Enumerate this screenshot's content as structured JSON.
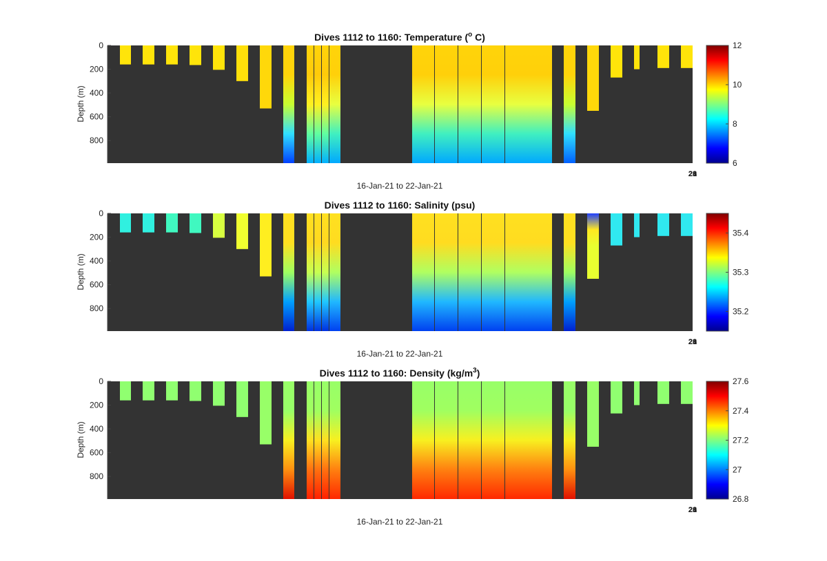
{
  "chart_data": [
    {
      "type": "heatmap",
      "title_main": "Dives 1112 to 1160: Temperature (",
      "title_sup": "o",
      "title_tail": " C)",
      "xlabel": "16-Jan-21 to 22-Jan-21",
      "ylabel": "Depth (m)",
      "y_ticks": [
        "0",
        "200",
        "400",
        "600",
        "800"
      ],
      "x_tick_labels": [
        "20",
        "21",
        "28"
      ],
      "colorbar_ticks": [
        "12",
        "10",
        "8",
        "6"
      ],
      "clim": [
        6,
        12
      ],
      "ylim": [
        0,
        990
      ],
      "background_color": "#333333",
      "profiles": [
        {
          "max_depth": 160,
          "color": "#ffe40a"
        },
        {
          "max_depth": 160,
          "color": "#ffe40a"
        },
        {
          "max_depth": 160,
          "color": "#ffe40a"
        },
        {
          "max_depth": 165,
          "color": "#ffe40a"
        },
        {
          "max_depth": 205,
          "color": "#ffe40a"
        },
        {
          "max_depth": 300,
          "color": "#ffe00a"
        },
        {
          "max_depth": 530,
          "color": "#ffd80a"
        },
        {
          "max_depth": 990,
          "gradient": [
            "#ffd40a",
            "#ffd40a",
            "#c8ff30",
            "#30e0ff",
            "#0040ff"
          ]
        },
        {
          "max_depth": 990,
          "gradient": [
            "#ffd40a",
            "#ffca0a",
            "#fff020",
            "#60ffa0",
            "#00b0ff"
          ]
        },
        {
          "max_depth": 990,
          "gradient": [
            "#ffd40a",
            "#ffca0a",
            "#fff020",
            "#60ffa0",
            "#00b0ff"
          ]
        },
        {
          "max_depth": 990,
          "gradient": [
            "#ffd40a",
            "#ffca0a",
            "#fff020",
            "#60ffa0",
            "#00b0ff"
          ]
        },
        {
          "max_depth": 990,
          "gradient": [
            "#ffd40a",
            "#ffd00a",
            "#e8ff40",
            "#40f0c0",
            "#00a8ff"
          ]
        },
        {
          "max_depth": 990,
          "gradient": [
            "#ffd40a",
            "#ffd00a",
            "#e8ff40",
            "#40f0c0",
            "#00a8ff"
          ]
        },
        {
          "max_depth": 990,
          "gradient": [
            "#ffd40a",
            "#ffd00a",
            "#e8ff40",
            "#40f0c0",
            "#00a8ff"
          ]
        },
        {
          "max_depth": 990,
          "gradient": [
            "#ffd40a",
            "#ffd00a",
            "#e8ff40",
            "#40f0c0",
            "#00a8ff"
          ]
        },
        {
          "max_depth": 990,
          "gradient": [
            "#ffd40a",
            "#ffd00a",
            "#e8ff40",
            "#40f0c0",
            "#00a8ff"
          ]
        },
        {
          "max_depth": 990,
          "gradient": [
            "#ffd40a",
            "#ffd00a",
            "#e8ff40",
            "#40f0c0",
            "#00a8ff"
          ]
        },
        {
          "max_depth": 990,
          "gradient": [
            "#ffd40a",
            "#ffd00a",
            "#e8ff40",
            "#40f0c0",
            "#00a8ff"
          ]
        },
        {
          "max_depth": 990,
          "gradient": [
            "#ffd40a",
            "#ffd40a",
            "#c8ff30",
            "#30e0ff",
            "#0060ff"
          ]
        },
        {
          "max_depth": 550,
          "color": "#ffd80a"
        },
        {
          "max_depth": 270,
          "color": "#ffe40a"
        },
        {
          "max_depth": 200,
          "color": "#ffe40a"
        },
        {
          "max_depth": 190,
          "color": "#ffe40a"
        },
        {
          "max_depth": 190,
          "color": "#ffe40a"
        }
      ]
    },
    {
      "type": "heatmap",
      "title_main": "Dives 1112 to 1160: Salinity (psu)",
      "title_sup": "",
      "title_tail": "",
      "xlabel": "16-Jan-21 to 22-Jan-21",
      "ylabel": "Depth (m)",
      "y_ticks": [
        "0",
        "200",
        "400",
        "600",
        "800"
      ],
      "x_tick_labels": [
        "20",
        "21",
        "28"
      ],
      "colorbar_ticks": [
        "35.4",
        "35.3",
        "35.2"
      ],
      "clim": [
        35.15,
        35.45
      ],
      "ylim": [
        0,
        990
      ],
      "background_color": "#333333",
      "profiles": [
        {
          "max_depth": 160,
          "color": "#30f0e0"
        },
        {
          "max_depth": 160,
          "color": "#30f0e0"
        },
        {
          "max_depth": 160,
          "color": "#40f8c0"
        },
        {
          "max_depth": 165,
          "color": "#40f8c0"
        },
        {
          "max_depth": 205,
          "color": "#d8ff40"
        },
        {
          "max_depth": 300,
          "color": "#f0ff30"
        },
        {
          "max_depth": 530,
          "color": "#ffee20"
        },
        {
          "max_depth": 990,
          "gradient": [
            "#ffe020",
            "#ffe020",
            "#a0ff60",
            "#00a0ff",
            "#0020d0"
          ]
        },
        {
          "max_depth": 990,
          "gradient": [
            "#ffe020",
            "#ffd820",
            "#c8ff50",
            "#20c8ff",
            "#0030e0"
          ]
        },
        {
          "max_depth": 990,
          "gradient": [
            "#ffe020",
            "#ffd820",
            "#c8ff50",
            "#20c8ff",
            "#0030e0"
          ]
        },
        {
          "max_depth": 990,
          "gradient": [
            "#ffe020",
            "#ffd820",
            "#c8ff50",
            "#20c8ff",
            "#0030e0"
          ]
        },
        {
          "max_depth": 990,
          "gradient": [
            "#ffe020",
            "#ffdc20",
            "#b0ff60",
            "#20b8ff",
            "#0040f0"
          ]
        },
        {
          "max_depth": 990,
          "gradient": [
            "#ffe020",
            "#ffdc20",
            "#b0ff60",
            "#20b8ff",
            "#0040f0"
          ]
        },
        {
          "max_depth": 990,
          "gradient": [
            "#ffe020",
            "#ffdc20",
            "#b0ff60",
            "#20b8ff",
            "#0040f0"
          ]
        },
        {
          "max_depth": 990,
          "gradient": [
            "#ffe020",
            "#ffdc20",
            "#b0ff60",
            "#20b8ff",
            "#0040f0"
          ]
        },
        {
          "max_depth": 990,
          "gradient": [
            "#ffe020",
            "#ffdc20",
            "#b0ff60",
            "#20b8ff",
            "#0040f0"
          ]
        },
        {
          "max_depth": 990,
          "gradient": [
            "#ffe020",
            "#ffdc20",
            "#b0ff60",
            "#20b8ff",
            "#0040f0"
          ]
        },
        {
          "max_depth": 990,
          "gradient": [
            "#ffe020",
            "#ffdc20",
            "#b0ff60",
            "#20b8ff",
            "#0040f0"
          ]
        },
        {
          "max_depth": 990,
          "gradient": [
            "#ffe020",
            "#ffe020",
            "#a0ff60",
            "#00a0ff",
            "#0020d0"
          ]
        },
        {
          "max_depth": 550,
          "gradient": [
            "#2040ff",
            "#ffe820",
            "#e8ff30",
            "#e8ff30",
            "#e8ff30"
          ]
        },
        {
          "max_depth": 270,
          "color": "#30e8f0"
        },
        {
          "max_depth": 200,
          "color": "#30e8f0"
        },
        {
          "max_depth": 190,
          "color": "#30e8f0"
        },
        {
          "max_depth": 190,
          "color": "#30e8f0"
        }
      ]
    },
    {
      "type": "heatmap",
      "title_main": "Dives 1112 to 1160: Density (kg/m",
      "title_sup": "3",
      "title_tail": ")",
      "xlabel": "16-Jan-21 to 22-Jan-21",
      "ylabel": "Depth (m)",
      "y_ticks": [
        "0",
        "200",
        "400",
        "600",
        "800"
      ],
      "x_tick_labels": [
        "20",
        "21",
        "28"
      ],
      "colorbar_ticks": [
        "27.6",
        "27.4",
        "27.2",
        "27",
        "26.8"
      ],
      "clim": [
        26.8,
        27.6
      ],
      "ylim": [
        0,
        990
      ],
      "background_color": "#333333",
      "profiles": [
        {
          "max_depth": 160,
          "color": "#90ff70"
        },
        {
          "max_depth": 160,
          "color": "#90ff70"
        },
        {
          "max_depth": 160,
          "color": "#90ff70"
        },
        {
          "max_depth": 165,
          "color": "#90ff70"
        },
        {
          "max_depth": 205,
          "color": "#90ff70"
        },
        {
          "max_depth": 300,
          "color": "#90ff70"
        },
        {
          "max_depth": 530,
          "color": "#98ff68"
        },
        {
          "max_depth": 990,
          "gradient": [
            "#98ff68",
            "#98ff68",
            "#f8f020",
            "#ff9010",
            "#e01000"
          ]
        },
        {
          "max_depth": 990,
          "gradient": [
            "#98ff68",
            "#a0ff60",
            "#ffe020",
            "#ff7010",
            "#ff2000"
          ]
        },
        {
          "max_depth": 990,
          "gradient": [
            "#98ff68",
            "#a0ff60",
            "#ffe020",
            "#ff7010",
            "#ff2000"
          ]
        },
        {
          "max_depth": 990,
          "gradient": [
            "#98ff68",
            "#a0ff60",
            "#ffe020",
            "#ff7010",
            "#ff2000"
          ]
        },
        {
          "max_depth": 990,
          "gradient": [
            "#98ff68",
            "#a0ff60",
            "#f8f020",
            "#ff8010",
            "#ff2800"
          ]
        },
        {
          "max_depth": 990,
          "gradient": [
            "#98ff68",
            "#a0ff60",
            "#f8f020",
            "#ff8010",
            "#ff2800"
          ]
        },
        {
          "max_depth": 990,
          "gradient": [
            "#98ff68",
            "#a0ff60",
            "#f8f020",
            "#ff8010",
            "#ff2800"
          ]
        },
        {
          "max_depth": 990,
          "gradient": [
            "#98ff68",
            "#a0ff60",
            "#f8f020",
            "#ff8010",
            "#ff2800"
          ]
        },
        {
          "max_depth": 990,
          "gradient": [
            "#98ff68",
            "#a0ff60",
            "#f8f020",
            "#ff8010",
            "#ff2800"
          ]
        },
        {
          "max_depth": 990,
          "gradient": [
            "#98ff68",
            "#a0ff60",
            "#f8f020",
            "#ff8010",
            "#ff2800"
          ]
        },
        {
          "max_depth": 990,
          "gradient": [
            "#98ff68",
            "#a0ff60",
            "#f8f020",
            "#ff8010",
            "#ff2800"
          ]
        },
        {
          "max_depth": 990,
          "gradient": [
            "#98ff68",
            "#98ff68",
            "#f8f020",
            "#ff9010",
            "#e01000"
          ]
        },
        {
          "max_depth": 550,
          "color": "#98ff68"
        },
        {
          "max_depth": 270,
          "color": "#90ff70"
        },
        {
          "max_depth": 200,
          "color": "#90ff70"
        },
        {
          "max_depth": 190,
          "color": "#90ff70"
        },
        {
          "max_depth": 190,
          "color": "#90ff70"
        }
      ]
    }
  ]
}
